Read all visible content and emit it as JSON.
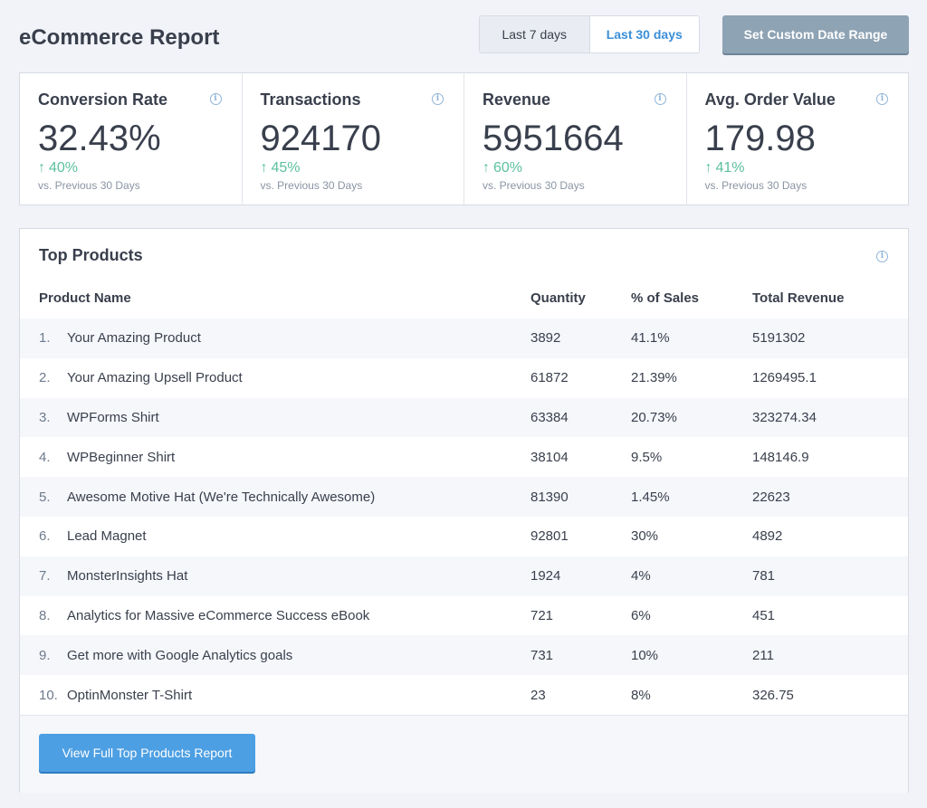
{
  "header": {
    "title": "eCommerce Report",
    "range_options": [
      "Last 7 days",
      "Last 30 days"
    ],
    "selected_range": "Last 30 days",
    "custom_range_label": "Set Custom Date Range"
  },
  "kpis": [
    {
      "title": "Conversion Rate",
      "value": "32.43%",
      "change": "40%",
      "compare": "vs. Previous 30 Days"
    },
    {
      "title": "Transactions",
      "value": "924170",
      "change": "45%",
      "compare": "vs. Previous 30 Days"
    },
    {
      "title": "Revenue",
      "value": "5951664",
      "change": "60%",
      "compare": "vs. Previous 30 Days"
    },
    {
      "title": "Avg. Order Value",
      "value": "179.98",
      "change": "41%",
      "compare": "vs. Previous 30 Days"
    }
  ],
  "icons": {
    "info": "info-icon",
    "up_arrow": "arrow-up-icon"
  },
  "colors": {
    "accent_blue": "#3b8fd8",
    "positive_green": "#5cc0a0",
    "button_blue": "#4d9fe3",
    "button_grey": "#8ea3b4",
    "background": "#f1f3f8"
  },
  "top_products": {
    "title": "Top Products",
    "columns": [
      "Product Name",
      "Quantity",
      "% of Sales",
      "Total Revenue"
    ],
    "rows": [
      {
        "num": "1.",
        "name": "Your Amazing Product",
        "qty": "3892",
        "pct": "41.1%",
        "rev": "5191302"
      },
      {
        "num": "2.",
        "name": "Your Amazing Upsell Product",
        "qty": "61872",
        "pct": "21.39%",
        "rev": "1269495.1"
      },
      {
        "num": "3.",
        "name": "WPForms Shirt",
        "qty": "63384",
        "pct": "20.73%",
        "rev": "323274.34"
      },
      {
        "num": "4.",
        "name": "WPBeginner Shirt",
        "qty": "38104",
        "pct": "9.5%",
        "rev": "148146.9"
      },
      {
        "num": "5.",
        "name": "Awesome Motive Hat (We're Technically Awesome)",
        "qty": "81390",
        "pct": "1.45%",
        "rev": "22623"
      },
      {
        "num": "6.",
        "name": "Lead Magnet",
        "qty": "92801",
        "pct": "30%",
        "rev": "4892"
      },
      {
        "num": "7.",
        "name": "MonsterInsights Hat",
        "qty": "1924",
        "pct": "4%",
        "rev": "781"
      },
      {
        "num": "8.",
        "name": "Analytics for Massive eCommerce Success eBook",
        "qty": "721",
        "pct": "6%",
        "rev": "451"
      },
      {
        "num": "9.",
        "name": "Get more with Google Analytics goals",
        "qty": "731",
        "pct": "10%",
        "rev": "211"
      },
      {
        "num": "10.",
        "name": "OptinMonster T-Shirt",
        "qty": "23",
        "pct": "8%",
        "rev": "326.75"
      }
    ],
    "button_label": "View Full Top Products Report"
  }
}
